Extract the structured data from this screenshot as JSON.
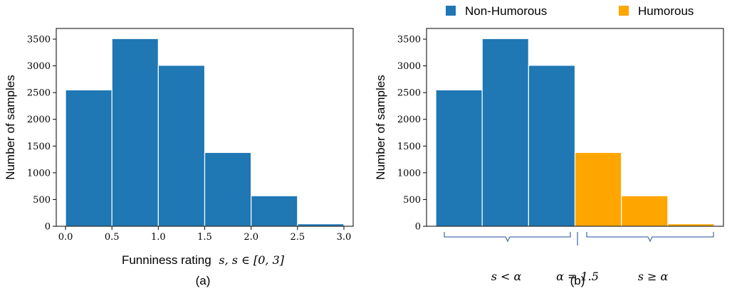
{
  "chart_data": [
    {
      "type": "bar",
      "panel": "(a)",
      "bin_edges": [
        0.0,
        0.5,
        1.0,
        1.5,
        2.0,
        2.5,
        3.0
      ],
      "values": [
        2550,
        3510,
        3010,
        1380,
        570,
        45
      ],
      "colors": [
        "#1f77b4",
        "#1f77b4",
        "#1f77b4",
        "#1f77b4",
        "#1f77b4",
        "#1f77b4"
      ],
      "xlabel_text": "Funniness rating",
      "xlabel_math": "s, s ∈ [0, 3]",
      "ylabel": "Number of samples",
      "xticks": [
        "0.0",
        "0.5",
        "1.0",
        "1.5",
        "2.0",
        "2.5",
        "3.0"
      ],
      "yticks": [
        "0",
        "500",
        "1000",
        "1500",
        "2000",
        "2500",
        "3000",
        "3500"
      ],
      "xlim": [
        -0.1,
        3.1
      ],
      "ylim": [
        0,
        3700
      ]
    },
    {
      "type": "bar",
      "panel": "(b)",
      "bin_edges": [
        0.0,
        0.5,
        1.0,
        1.5,
        2.0,
        2.5,
        3.0
      ],
      "values": [
        2550,
        3510,
        3010,
        1380,
        570,
        45
      ],
      "colors": [
        "#1f77b4",
        "#1f77b4",
        "#1f77b4",
        "#ffa500",
        "#ffa500",
        "#ffa500"
      ],
      "ylabel": "Number of samples",
      "yticks": [
        "0",
        "500",
        "1000",
        "1500",
        "2000",
        "2500",
        "3000",
        "3500"
      ],
      "xlim": [
        -0.1,
        3.1
      ],
      "ylim": [
        0,
        3700
      ],
      "legend": [
        {
          "name": "Non-Humorous",
          "color": "#1f77b4"
        },
        {
          "name": "Humorous",
          "color": "#ffa500"
        }
      ],
      "annotations": {
        "left": "s < α",
        "threshold": "α = 1.5",
        "right": "s ≥ α"
      }
    }
  ]
}
